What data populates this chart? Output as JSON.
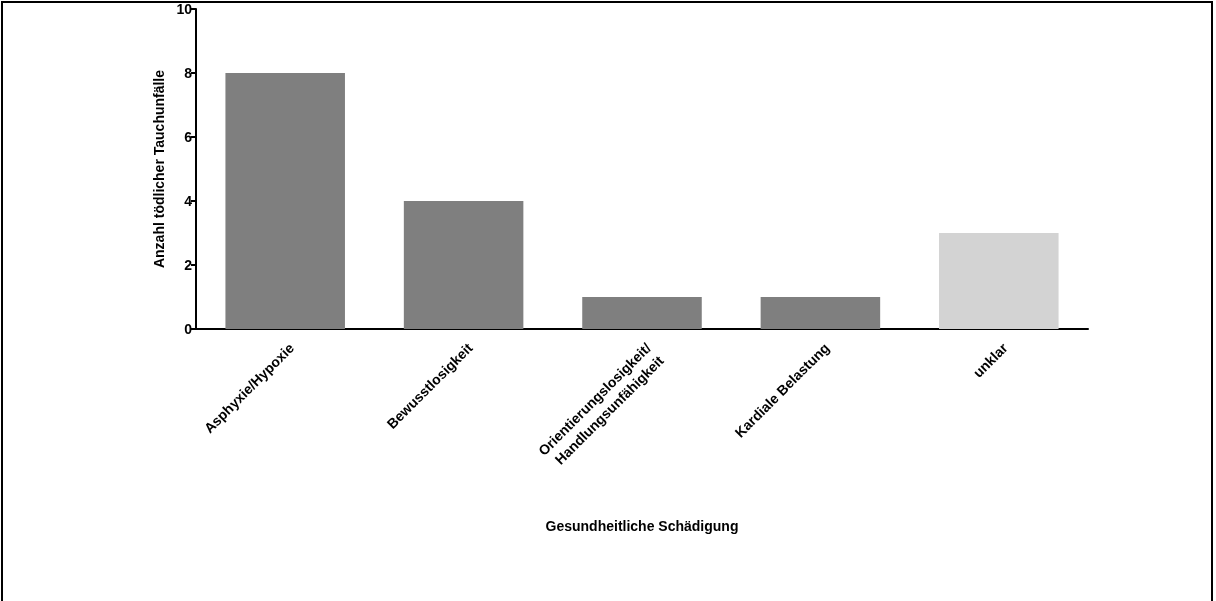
{
  "chart_data": {
    "type": "bar",
    "xlabel": "Gesundheitliche Schädigung",
    "ylabel": "Anzahl tödlicher Tauchunfälle",
    "categories": [
      "Asphyxie/Hypoxie",
      "Bewusstlosigkeit",
      "Orientierungslosigkeit/\nHandlungsunfähigkeit",
      "Kardiale Belastung",
      "unklar"
    ],
    "values": [
      8,
      4,
      1,
      1,
      3
    ],
    "colors": [
      "#7f7f7f",
      "#7f7f7f",
      "#7f7f7f",
      "#7f7f7f",
      "#d3d3d3"
    ],
    "ylim": [
      0,
      10
    ],
    "yticks": [
      0,
      2,
      4,
      6,
      8,
      10
    ],
    "grid": false
  }
}
